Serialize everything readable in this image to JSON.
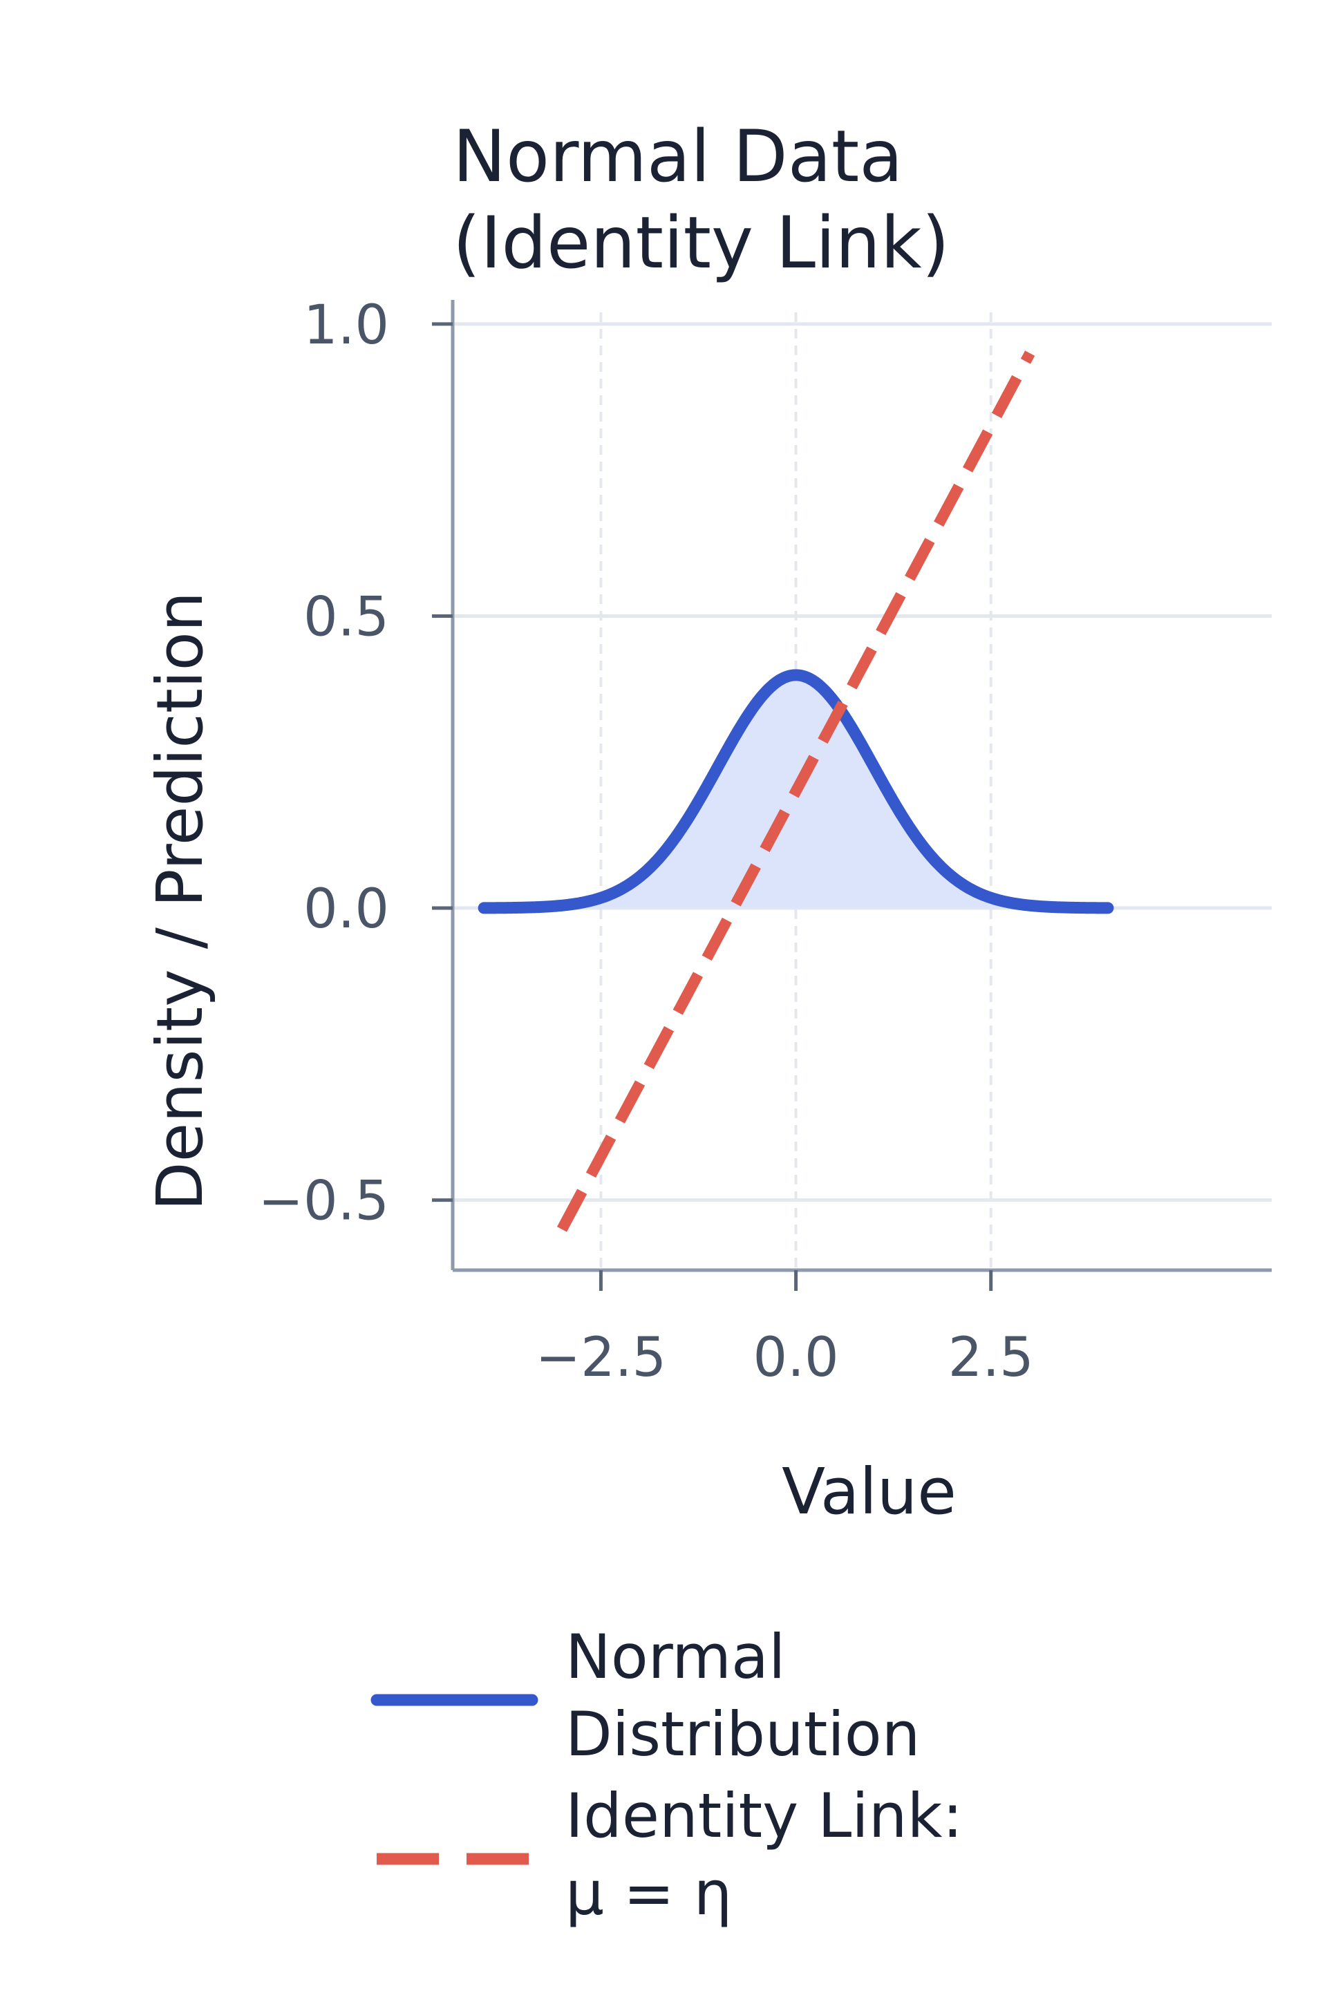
{
  "chart_data": {
    "type": "line",
    "title": "Normal Data\n(Identity Link)",
    "xlabel": "Value",
    "ylabel": "Density / Prediction",
    "xlim": [
      -4.4,
      6.1
    ],
    "ylim": [
      -0.62,
      1.02
    ],
    "xticks": [
      -2.5,
      0.0,
      2.5
    ],
    "xtick_labels": [
      "−2.5",
      "0.0",
      "2.5"
    ],
    "yticks": [
      -0.5,
      0.0,
      0.5,
      1.0
    ],
    "ytick_labels": [
      "−0.5",
      "0.0",
      "0.5",
      "1.0"
    ],
    "grid": true,
    "legend_position": "below plot",
    "series": [
      {
        "name": "Normal\nDistribution",
        "kind": "normal-pdf",
        "mean": 0,
        "sd": 1,
        "x_range": [
          -4,
          4
        ],
        "x": [
          -4,
          -3.5,
          -3,
          -2.5,
          -2,
          -1.5,
          -1,
          -0.5,
          0,
          0.5,
          1,
          1.5,
          2,
          2.5,
          3,
          3.5,
          4
        ],
        "values": [
          0.0001,
          0.0009,
          0.0044,
          0.0175,
          0.054,
          0.1295,
          0.242,
          0.3521,
          0.3989,
          0.3521,
          0.242,
          0.1295,
          0.054,
          0.0175,
          0.0044,
          0.0009,
          0.0001
        ],
        "filled": true,
        "color": "#3558cc",
        "fill_color": "#dbe4fb",
        "style": "solid"
      },
      {
        "name": "Identity Link:\nμ = η",
        "kind": "linear",
        "x": [
          -3,
          3
        ],
        "values": [
          -0.55,
          0.95
        ],
        "color": "#e05a4d",
        "style": "dashed"
      }
    ]
  }
}
